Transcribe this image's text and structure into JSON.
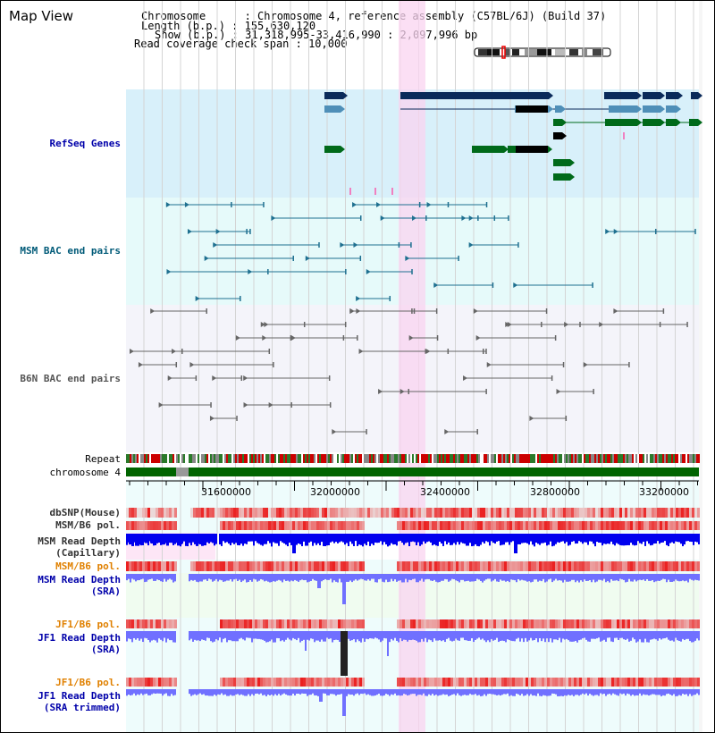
{
  "header": {
    "title": "Map View",
    "info_lines": [
      "Chromosome      : Chromosome 4, reference assembly (C57BL/6J) (Build 37)",
      "Length (b.p.) : 155,630,120",
      "Show (b.p.) : 31,318,995-33,416,990 : 2,097,996 bp",
      "Read coverage check span : 10,000"
    ]
  },
  "tracks": {
    "refseq": "RefSeq Genes",
    "msm_bac": "MSM BAC end pairs",
    "b6n_bac": "B6N BAC end pairs",
    "repeat": "Repeat",
    "chromosome": "chromosome 4",
    "dbsnp": "dbSNP(Mouse)",
    "msm_b6_pol": "MSM/B6 pol.",
    "msm_read_depth_capillary": "MSM Read Depth\n(Capillary)",
    "msm_b6_pol_sra": "MSM/B6 pol.",
    "msm_read_depth_sra": "MSM Read Depth\n(SRA)",
    "jf1_b6_pol": "JF1/B6 pol.",
    "jf1_read_depth_sra": "JF1 Read Depth\n(SRA)",
    "jf1_b6_pol_trimmed": "JF1/B6 pol.",
    "jf1_read_depth_trimmed": "JF1 Read Depth\n(SRA trimmed)"
  },
  "axis": {
    "ticks": [
      "31600000",
      "32000000",
      "32400000",
      "32800000",
      "33200000"
    ]
  },
  "colors": {
    "refseq_bg": "#d8f0fa",
    "msm_bg": "#e6fafa",
    "b6n_bg": "#f4f4fa",
    "highlight": "#f9d4f0",
    "label_blue": "#0000aa",
    "label_teal": "#005a78",
    "label_gray": "#555555",
    "label_orange": "#e08000",
    "chromosome_green": "#006400",
    "depth_blue": "#0000ee",
    "depth_lightblue": "#7070ff"
  }
}
